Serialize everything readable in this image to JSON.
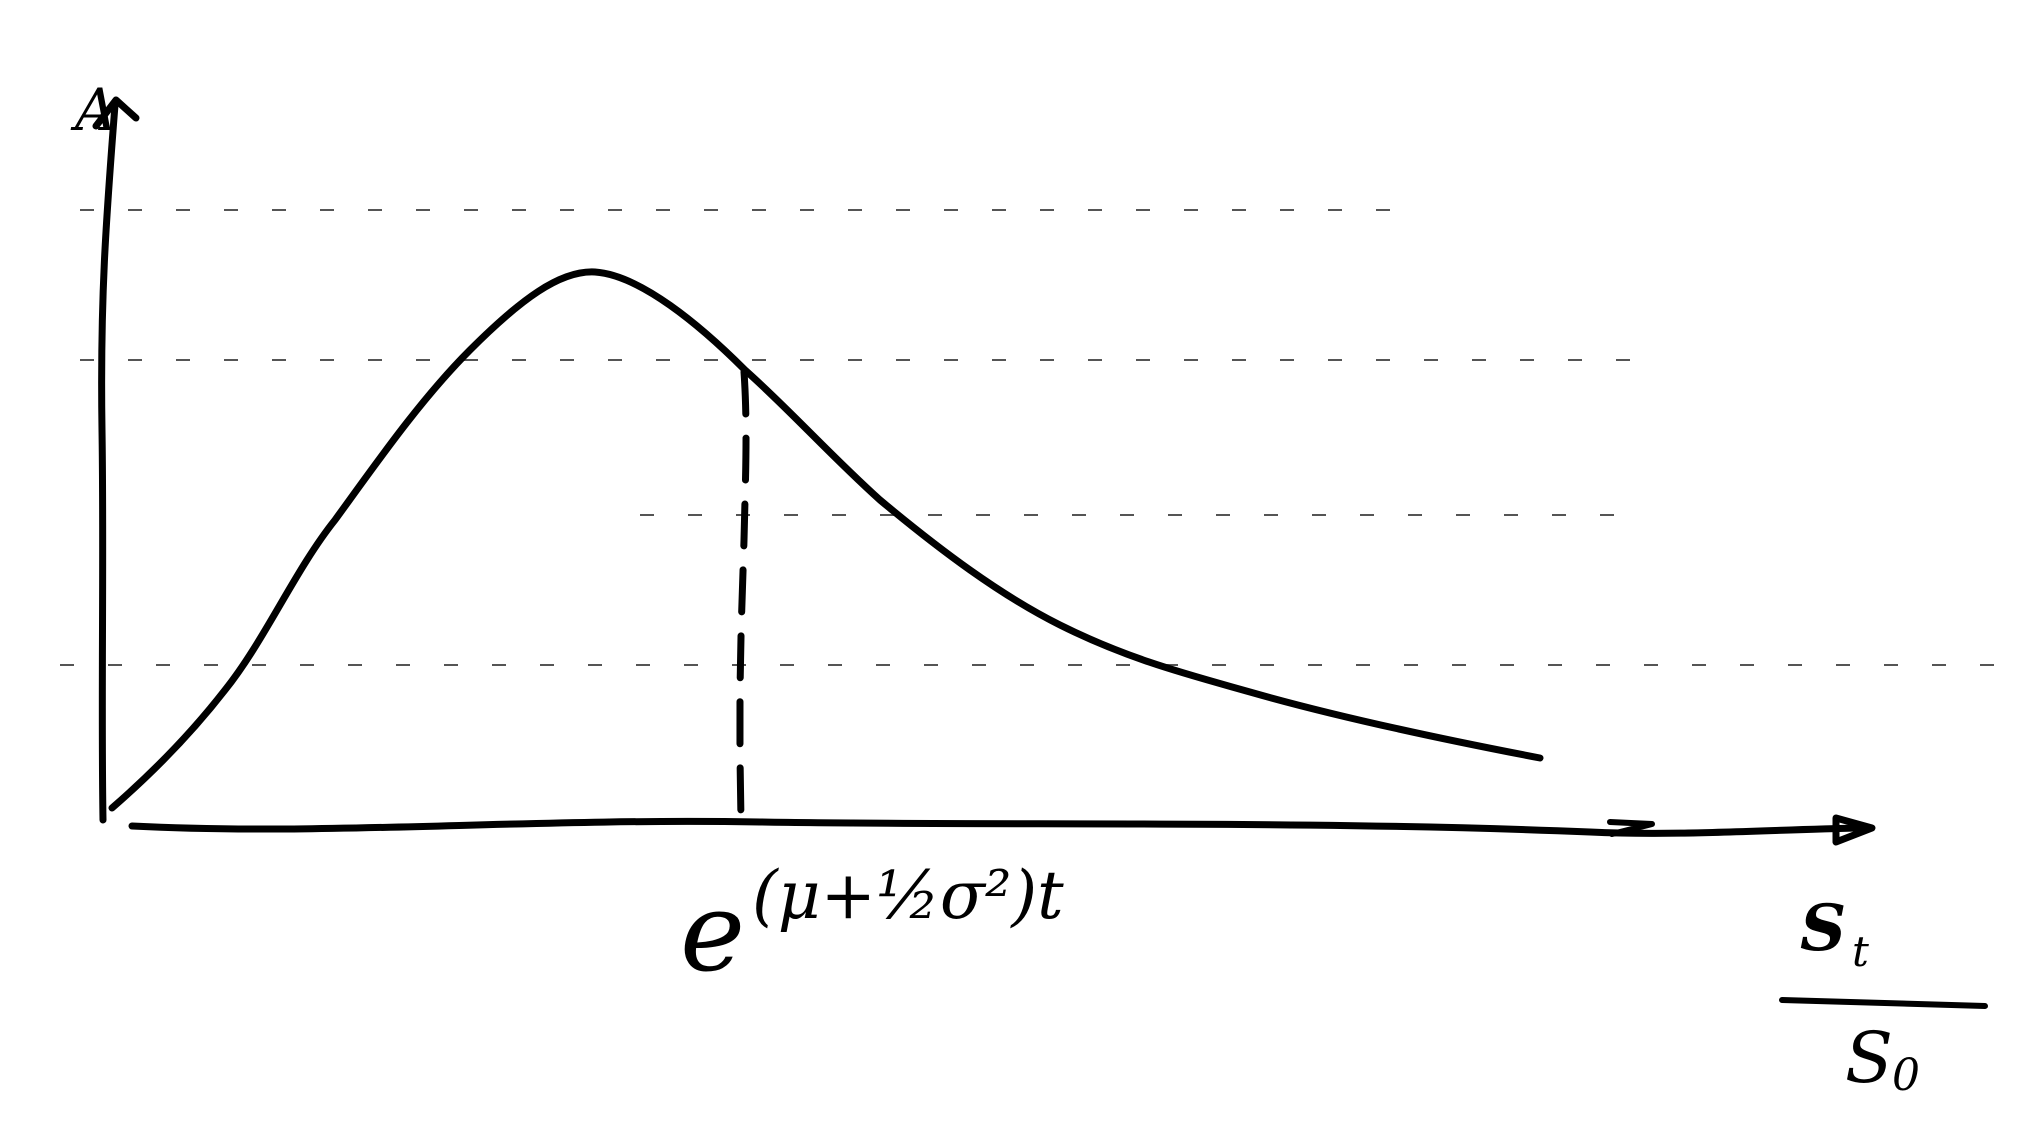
{
  "diagram": {
    "y_axis_label": "A",
    "mean_marker_label": {
      "base": "e",
      "exponent": "(μ+½σ²)t"
    },
    "x_axis_label": {
      "numerator": "S",
      "numerator_subscript": "t",
      "denominator": "S",
      "denominator_subscript": "0"
    }
  }
}
